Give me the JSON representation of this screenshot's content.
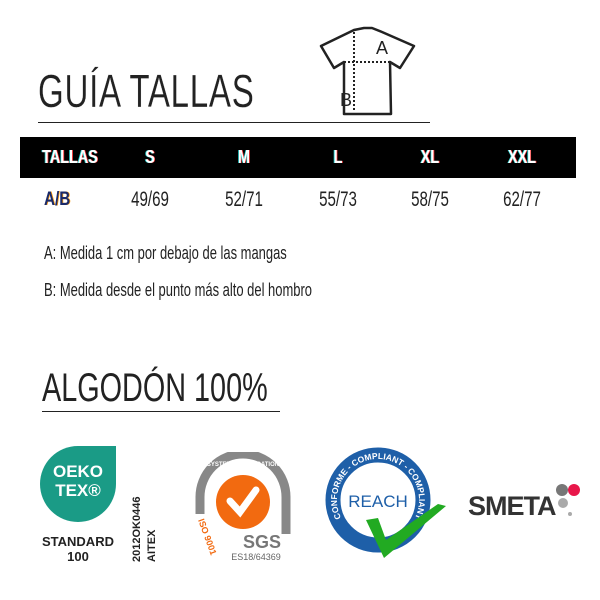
{
  "header": {
    "title": "GUÍA TALLAS",
    "diagram_labels": {
      "a": "A",
      "b": "B"
    }
  },
  "table": {
    "header_label": "TALLAS",
    "sizes": [
      "S",
      "M",
      "L",
      "XL",
      "XXL"
    ],
    "row_label": "A/B",
    "values": [
      "49/69",
      "52/71",
      "55/73",
      "58/75",
      "62/77"
    ]
  },
  "notes": [
    "A: Medida 1 cm por debajo de las mangas",
    "B: Medida desde el punto más alto del hombro"
  ],
  "material": "ALGODÓN 100%",
  "certifications": {
    "oeko": {
      "line1": "OEKO",
      "line2": "TEX®",
      "standard": "STANDARD",
      "number": "100",
      "code": "2012OK0446",
      "org": "AITEX",
      "color": "#1a9b86"
    },
    "sgs": {
      "arc": "SYSTEM CERTIFICATION",
      "iso": "ISO 9001",
      "brand": "SGS",
      "code": "ES18/64369",
      "color": "#f26a10"
    },
    "reach": {
      "ring": "CONFORME - COMPLIANT - COMPLIANT",
      "label": "REACH",
      "color": "#1e5fa8",
      "check": "#22aa22"
    },
    "smeta": {
      "label": "SMETA",
      "dot": "#e8174a"
    }
  }
}
